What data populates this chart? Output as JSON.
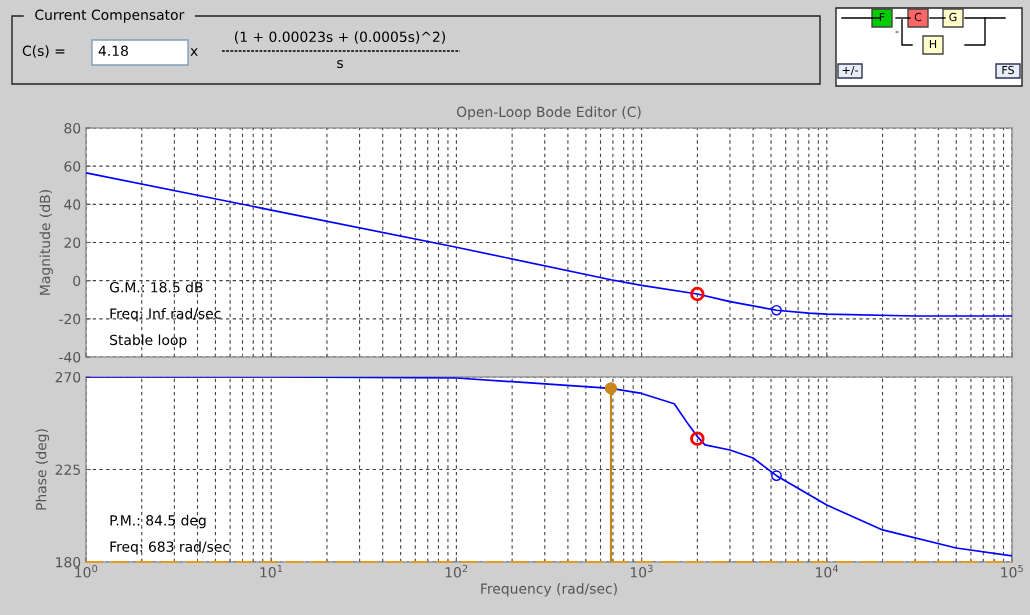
{
  "chart_data": [
    {
      "type": "other",
      "title": "Current Compensator",
      "annotations": [
        "C(s) =",
        "4.18",
        "x",
        "(1 + 0.00023s + (0.0005s)^2)",
        "s"
      ]
    },
    {
      "type": "other",
      "annotations": [
        "F",
        "C",
        "G",
        "H",
        "+/-",
        "FS",
        "-"
      ],
      "colors": [
        "#00cc00",
        "#ff6666",
        "#ffffcc",
        "#ffffcc"
      ]
    },
    {
      "type": "line",
      "title": "Open-Loop Bode Editor (C)",
      "ylabel": "Magnitude (dB)",
      "log": "x",
      "grid": true,
      "tick_labels": "y",
      "xlim": [
        1,
        100000
      ],
      "xticks": [
        {
          "value": 1,
          "label": null
        },
        {
          "value": 10,
          "label": null
        },
        {
          "value": 100,
          "label": null
        },
        {
          "value": 1000,
          "label": null
        },
        {
          "value": 10000,
          "label": null
        },
        {
          "value": 100000,
          "label": null
        }
      ],
      "ylim": [
        -40,
        80
      ],
      "yticks": [
        -40,
        -20,
        0,
        20,
        40,
        60,
        80
      ],
      "annotations": [
        "G.M.: 18.5 dB",
        "Freq: Inf rad/sec",
        "Stable loop"
      ],
      "series": [
        {
          "type": "line",
          "color": "#0000ff",
          "marker": "none",
          "x": [
            1,
            10,
            100,
            683,
            1000,
            2000,
            3000,
            5350,
            8000,
            10000,
            30000,
            100000
          ],
          "values": [
            56.5,
            37,
            17.5,
            0.5,
            -2.5,
            -7,
            -11,
            -15.5,
            -17,
            -17.5,
            -18.5,
            -18.5
          ]
        },
        {
          "type": "scatter",
          "color": "#ff0000",
          "marker": "circle",
          "x": [
            2000
          ],
          "values": [
            -7
          ]
        },
        {
          "type": "scatter",
          "color": "#0000ff",
          "marker": "circle",
          "x": [
            5350
          ],
          "values": [
            -15.5
          ]
        }
      ]
    },
    {
      "type": "line",
      "ylabel": "Phase (deg)",
      "xlabel": "Frequency (rad/sec)",
      "log": "x",
      "grid": true,
      "xlim": [
        1,
        100000
      ],
      "xticks": [
        {
          "value": 1,
          "label": "10$^{0}$"
        },
        {
          "value": 10,
          "label": "10$^{1}$"
        },
        {
          "value": 100,
          "label": "10$^{2}$"
        },
        {
          "value": 1000,
          "label": "10$^{3}$"
        },
        {
          "value": 10000,
          "label": "10$^{4}$"
        },
        {
          "value": 100000,
          "label": "10$^{5}$"
        }
      ],
      "ylim": [
        180,
        270
      ],
      "yticks": [
        180,
        225,
        270
      ],
      "annotations": [
        "P.M.: 84.5 deg",
        "Freq: 683 rad/sec"
      ],
      "ref_lines": [
        {
          "axis": "y",
          "value": 180,
          "color": "#e69a1e",
          "line_style": "dashed"
        }
      ],
      "series": [
        {
          "type": "line",
          "color": "#0000ff",
          "marker": "none",
          "x": [
            1,
            10,
            100,
            209,
            683,
            1000,
            1500,
            1800,
            2000,
            2200,
            3000,
            4000,
            5350,
            10000,
            20000,
            50000,
            100000
          ],
          "values": [
            270,
            270,
            269.5,
            267.6,
            264.5,
            262,
            257,
            246.6,
            241,
            237,
            234.5,
            230.6,
            222,
            207.7,
            195.6,
            186.8,
            183
          ]
        },
        {
          "type": "scatter",
          "color": "#ff0000",
          "marker": "circle",
          "x": [
            2000
          ],
          "values": [
            240
          ]
        },
        {
          "type": "scatter",
          "color": "#0000ff",
          "marker": "circle",
          "x": [
            5350
          ],
          "values": [
            222
          ]
        },
        {
          "type": "lollipop",
          "color": "#c8861a",
          "marker": "circle",
          "x": [
            683
          ],
          "values": [
            264.5
          ]
        }
      ]
    }
  ]
}
